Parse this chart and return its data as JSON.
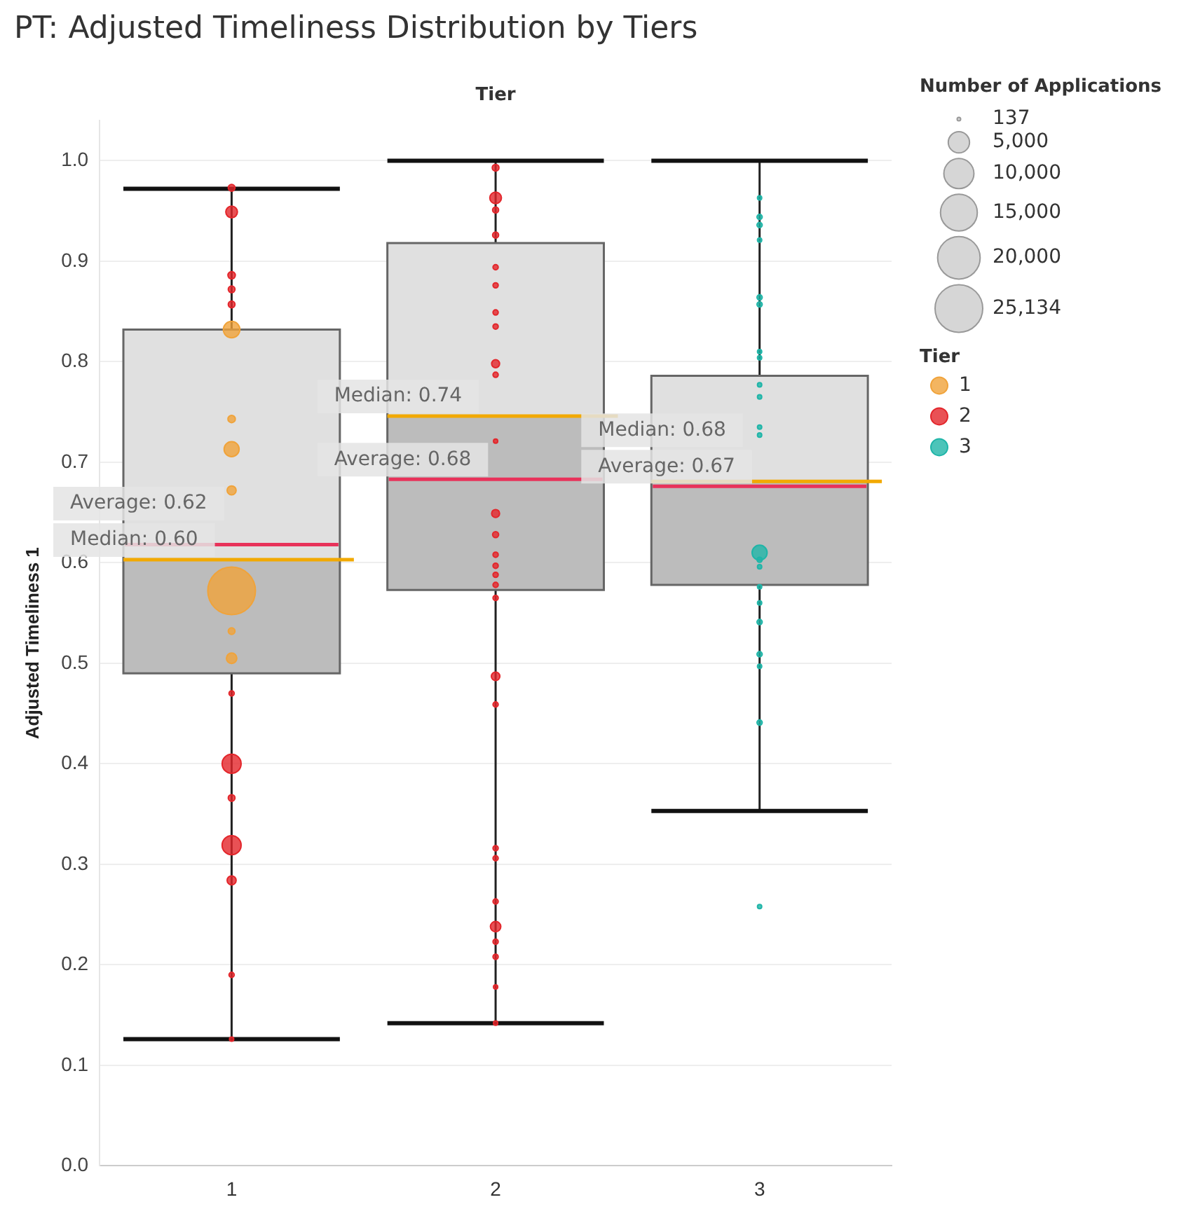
{
  "chart_data": {
    "type": "box",
    "title": "PT: Adjusted Timeliness Distribution by Tiers",
    "xlabel": "Tier",
    "ylabel": "Adjusted Timeliness 1",
    "legend_title": "Tier",
    "legend": "right",
    "grid": "y",
    "categories": [
      "1",
      "2",
      "3"
    ],
    "ylim": [
      0,
      1.04
    ],
    "yticks": [
      {
        "value": 0,
        "label": "0.0"
      },
      0.1,
      0.2,
      0.3,
      0.4,
      0.5,
      0.6,
      0.7,
      0.8,
      0.9,
      {
        "value": 1,
        "label": "1.0"
      }
    ],
    "size_legend": [
      137,
      {
        "value": 5000,
        "label": "5,000"
      },
      {
        "value": 10000,
        "label": "10,000"
      },
      {
        "value": 15000,
        "label": "15,000"
      },
      {
        "value": 20000,
        "label": "20,000"
      },
      {
        "value": 25134,
        "label": "25,134"
      }
    ],
    "annotations": [
      "Number of Applications",
      {
        "text": "Average: 0.62",
        "x": "1",
        "y": 0.618
      },
      {
        "text": "Median: 0.60",
        "x": "1",
        "y": 0.603
      },
      {
        "text": "Median: 0.74",
        "x": "2",
        "y": 0.746
      },
      {
        "text": "Average: 0.68",
        "x": "2",
        "y": 0.683
      },
      {
        "text": "Median: 0.68",
        "x": "3",
        "y": 0.681
      },
      {
        "text": "Average: 0.67",
        "x": "3",
        "y": 0.676
      }
    ],
    "series": [
      {
        "boxes": [
          {
            "low": 0.126,
            "q1": 0.49,
            "median": 0.603,
            "q3": 0.832,
            "high": 0.972,
            "mean": 0.618
          },
          {
            "low": 0.142,
            "q1": 0.573,
            "median": 0.746,
            "q3": 0.918,
            "high": 1.0,
            "mean": 0.683
          },
          {
            "low": 0.353,
            "q1": 0.578,
            "median": 0.681,
            "q3": 0.786,
            "high": 1.0,
            "mean": 0.676
          }
        ]
      },
      {
        "type": "bubble",
        "name": "1",
        "color": "#f0a33a",
        "x": [
          "1",
          "1",
          "1",
          "1",
          "1",
          "1",
          "1",
          "1",
          "1",
          "1",
          "1",
          "1",
          "1",
          "1",
          "1",
          "1",
          "1",
          "1",
          "1"
        ],
        "values": [
          0.973,
          0.949,
          0.886,
          0.872,
          0.857,
          0.832,
          0.743,
          0.713,
          0.672,
          0.572,
          0.532,
          0.505,
          0.47,
          0.4,
          0.366,
          0.319,
          0.284,
          0.19,
          0.126
        ],
        "sizes": [
          500,
          1500,
          600,
          500,
          500,
          3000,
          600,
          2500,
          900,
          25134,
          500,
          1200,
          300,
          4000,
          500,
          4000,
          900,
          300,
          200
        ],
        "colors": [
          "#e3262b",
          "#e3262b",
          "#e3262b",
          "#e3262b",
          "#e3262b",
          "#f0a33a",
          "#f0a33a",
          "#f0a33a",
          "#f0a33a",
          "#f0a33a",
          "#f0a33a",
          "#f0a33a",
          "#e3262b",
          "#e3262b",
          "#e3262b",
          "#e3262b",
          "#e3262b",
          "#e3262b",
          "#e3262b"
        ]
      },
      {
        "type": "bubble",
        "name": "2",
        "color": "#e3262b",
        "x": [
          "2",
          "2",
          "2",
          "2",
          "2",
          "2",
          "2",
          "2",
          "2",
          "2",
          "2",
          "2",
          "2",
          "2",
          "2",
          "2",
          "2",
          "2",
          "2",
          "2",
          "2",
          "2",
          "2",
          "2",
          "2",
          "2",
          "2",
          "2"
        ],
        "values": [
          0.993,
          0.963,
          0.951,
          0.926,
          0.894,
          0.876,
          0.849,
          0.835,
          0.798,
          0.787,
          0.721,
          0.649,
          0.628,
          0.608,
          0.597,
          0.588,
          0.578,
          0.565,
          0.487,
          0.459,
          0.316,
          0.306,
          0.263,
          0.238,
          0.223,
          0.208,
          0.178,
          0.142
        ],
        "sizes": [
          500,
          1500,
          400,
          400,
          300,
          300,
          300,
          300,
          700,
          300,
          200,
          700,
          400,
          300,
          300,
          300,
          300,
          300,
          800,
          300,
          300,
          300,
          300,
          1200,
          300,
          300,
          200,
          200
        ]
      },
      {
        "type": "bubble",
        "name": "3",
        "color": "#1fb5a8",
        "x": [
          "3",
          "3",
          "3",
          "3",
          "3",
          "3",
          "3",
          "3",
          "3",
          "3",
          "3",
          "3",
          "3",
          "3",
          "3",
          "3",
          "3",
          "3",
          "3",
          "3",
          "3",
          "3"
        ],
        "values": [
          0.963,
          0.944,
          0.936,
          0.921,
          0.864,
          0.857,
          0.81,
          0.804,
          0.777,
          0.765,
          0.735,
          0.727,
          0.61,
          0.603,
          0.596,
          0.576,
          0.56,
          0.541,
          0.509,
          0.497,
          0.441,
          0.258
        ],
        "sizes": [
          200,
          300,
          300,
          200,
          300,
          300,
          200,
          200,
          200,
          200,
          200,
          200,
          2500,
          300,
          200,
          200,
          200,
          300,
          300,
          200,
          300,
          200
        ]
      }
    ]
  }
}
